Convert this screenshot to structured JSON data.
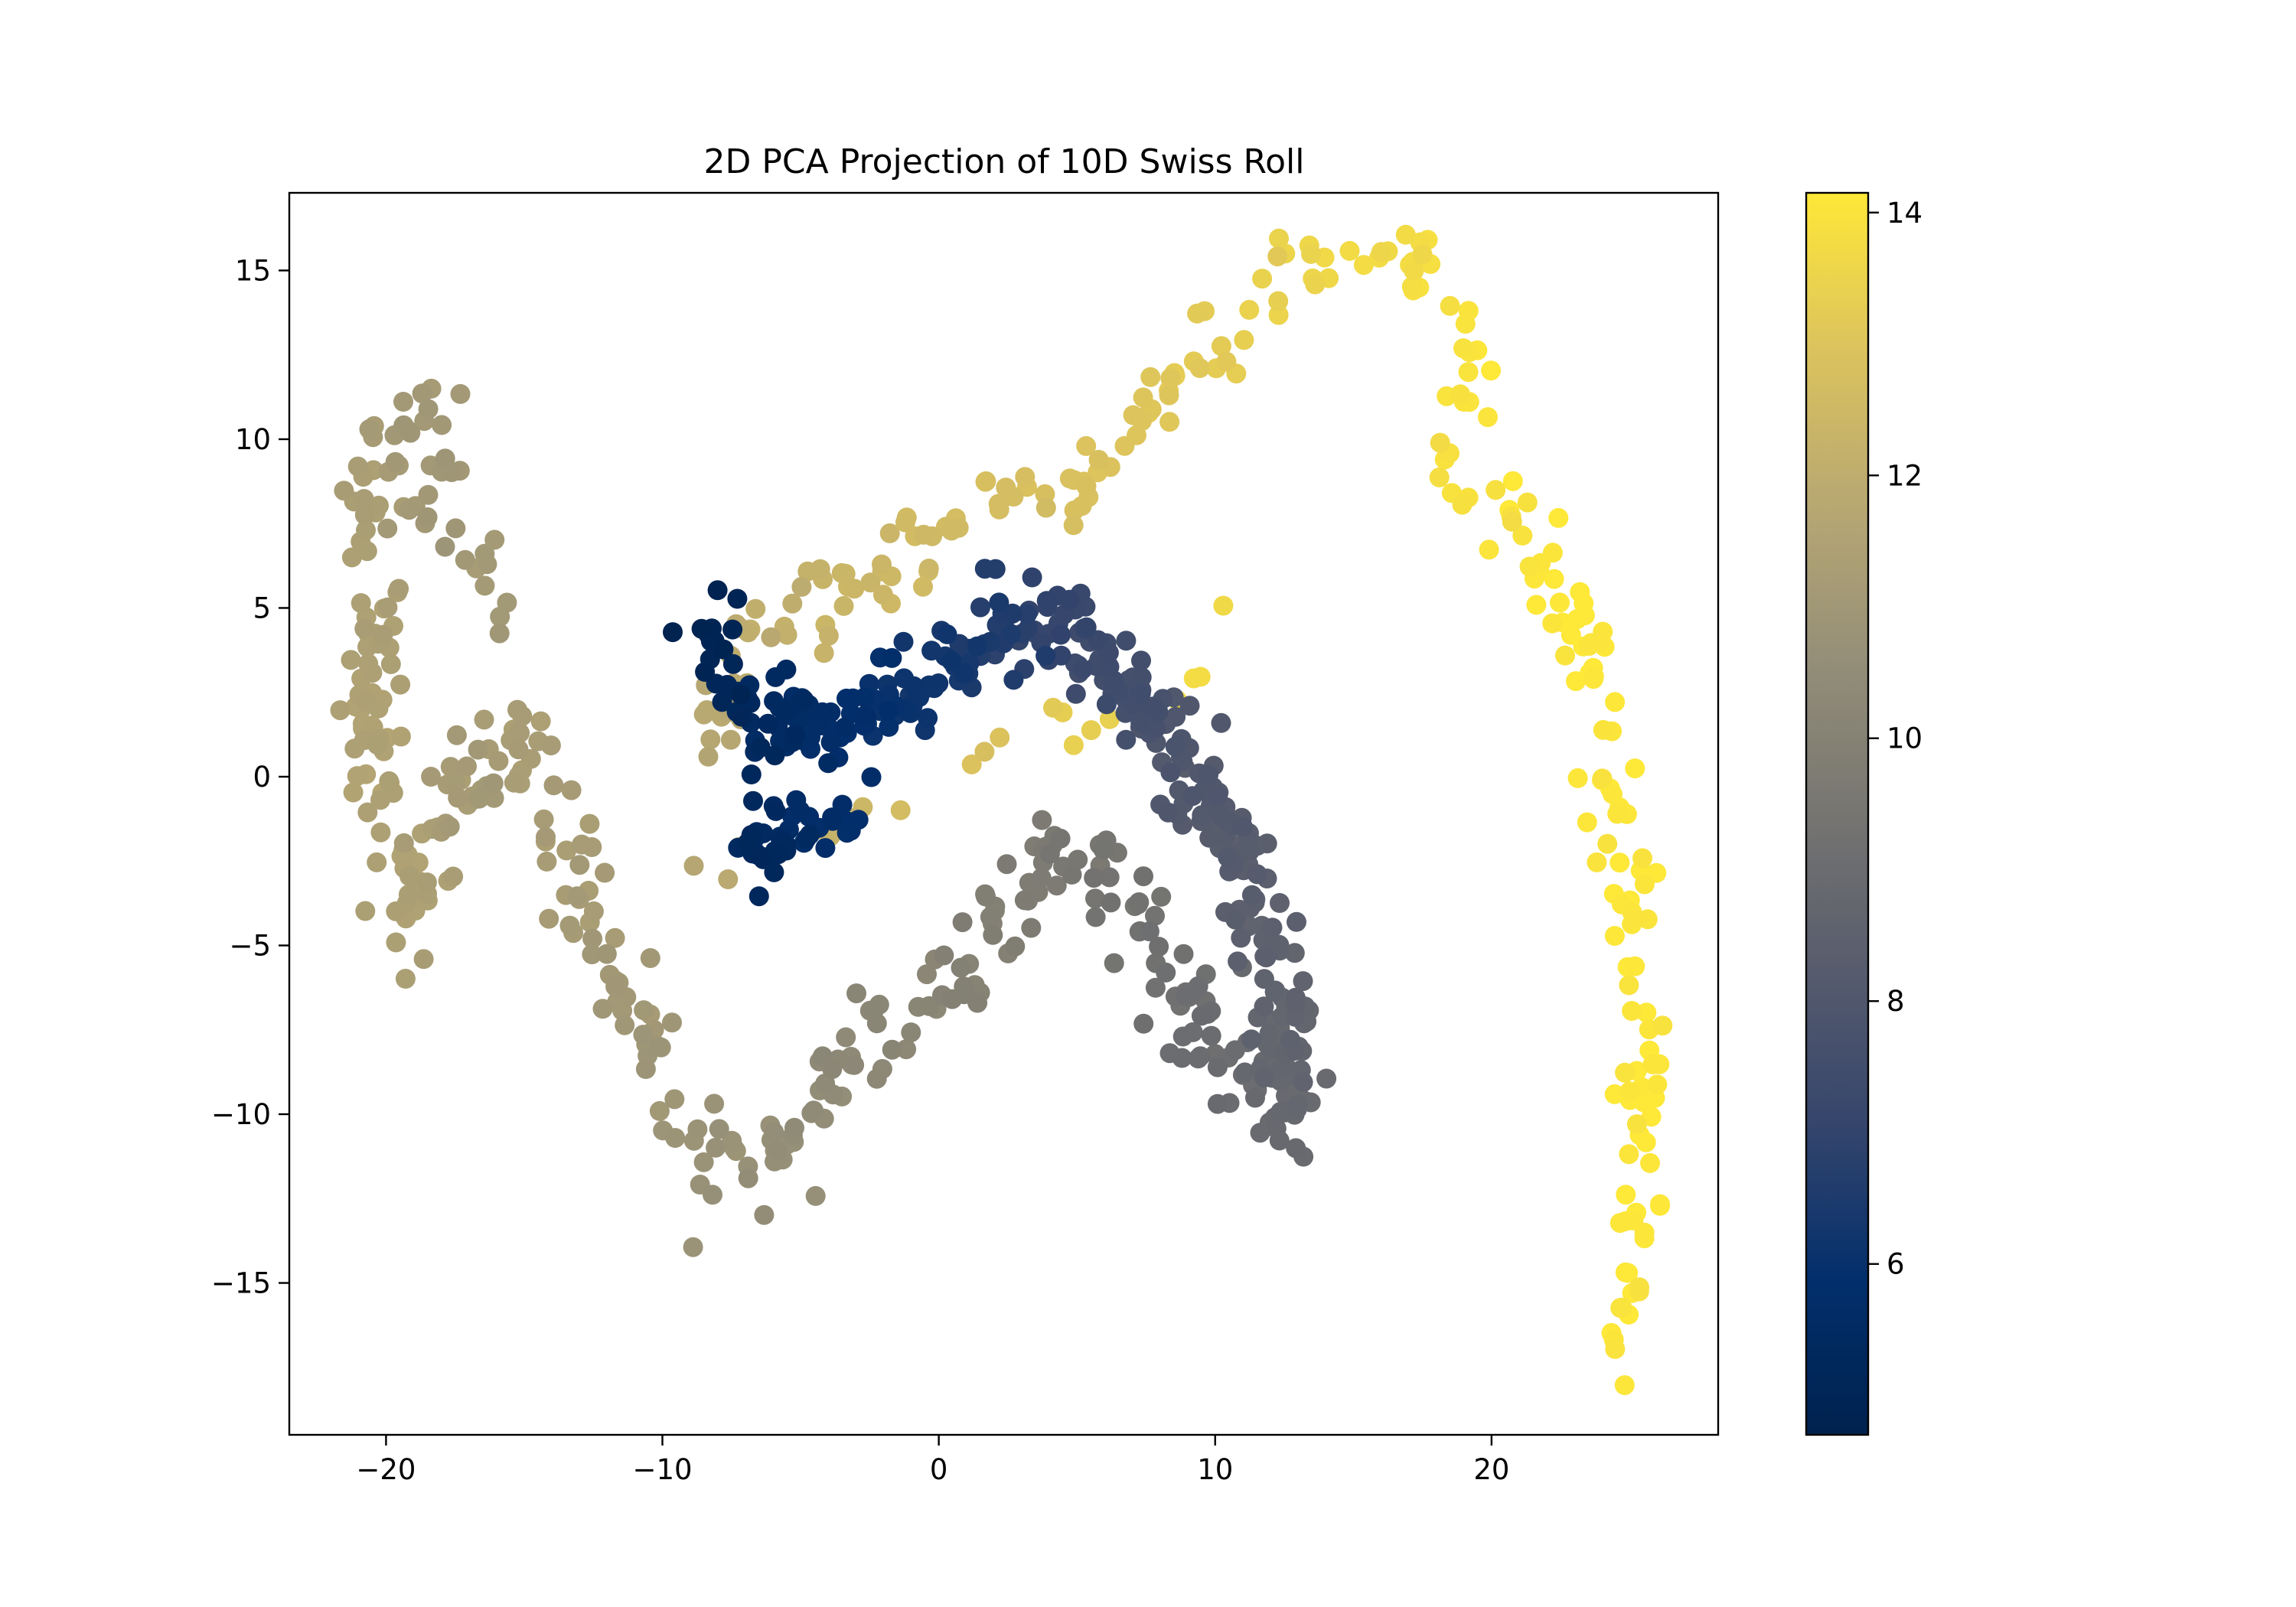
{
  "chart_data": {
    "type": "scatter",
    "title": "2D PCA Projection of 10D Swiss Roll",
    "xlabel": "",
    "ylabel": "",
    "xlim": [
      -23.5,
      28.2
    ],
    "ylim": [
      -19.5,
      17.3
    ],
    "x_ticks": [
      -20,
      -10,
      0,
      10,
      20
    ],
    "x_tick_labels": [
      "−20",
      "−10",
      "0",
      "10",
      "20"
    ],
    "y_ticks": [
      -15,
      -10,
      -5,
      0,
      5,
      10,
      15
    ],
    "y_tick_labels": [
      "−15",
      "−10",
      "−5",
      "0",
      "5",
      "10",
      "15"
    ],
    "grid": false,
    "colormap": "cividis",
    "colorbar": {
      "range": [
        4.7,
        14.15
      ],
      "ticks": [
        6,
        8,
        10,
        12,
        14
      ],
      "tick_labels": [
        "6",
        "8",
        "10",
        "12",
        "14"
      ]
    },
    "point_color": "value mapped through colormap",
    "point_count_approx": 1000
  }
}
